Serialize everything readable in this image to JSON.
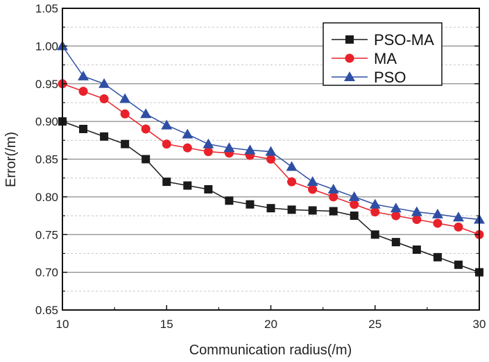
{
  "chart_data": {
    "type": "line",
    "title": "",
    "xlabel": "Communication radius(/m)",
    "ylabel": "Error(/m)",
    "xlim": [
      10,
      30
    ],
    "ylim": [
      0.65,
      1.05
    ],
    "xticks": [
      "10",
      "15",
      "20",
      "25",
      "30"
    ],
    "yticks": [
      "0.65",
      "0.70",
      "0.75",
      "0.80",
      "0.85",
      "0.90",
      "0.95",
      "1.00",
      "1.05"
    ],
    "grid": true,
    "legend_position": "top-right",
    "x": [
      10,
      11,
      12,
      13,
      14,
      15,
      16,
      17,
      18,
      19,
      20,
      21,
      22,
      23,
      24,
      25,
      26,
      27,
      28,
      29,
      30
    ],
    "series": [
      {
        "name": "PSO-MA",
        "color": "#1a1a1a",
        "marker": "square",
        "values": [
          0.9,
          0.89,
          0.88,
          0.87,
          0.85,
          0.82,
          0.815,
          0.81,
          0.795,
          0.79,
          0.785,
          0.783,
          0.782,
          0.781,
          0.775,
          0.75,
          0.74,
          0.73,
          0.72,
          0.71,
          0.7
        ]
      },
      {
        "name": "MA",
        "color": "#e8212a",
        "marker": "circle",
        "values": [
          0.95,
          0.94,
          0.93,
          0.91,
          0.89,
          0.87,
          0.865,
          0.86,
          0.858,
          0.855,
          0.85,
          0.82,
          0.81,
          0.8,
          0.79,
          0.78,
          0.775,
          0.77,
          0.765,
          0.76,
          0.75
        ]
      },
      {
        "name": "PSO",
        "color": "#2e4fa3",
        "marker": "triangle",
        "values": [
          1.0,
          0.96,
          0.95,
          0.93,
          0.91,
          0.895,
          0.883,
          0.87,
          0.865,
          0.862,
          0.86,
          0.84,
          0.82,
          0.81,
          0.8,
          0.79,
          0.785,
          0.78,
          0.777,
          0.773,
          0.77
        ]
      }
    ]
  }
}
